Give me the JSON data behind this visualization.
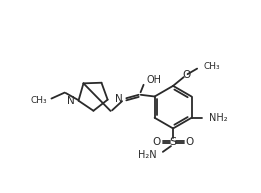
{
  "bg_color": "#ffffff",
  "line_color": "#2a2a2a",
  "line_width": 1.3,
  "font_size": 7.0,
  "figsize": [
    2.61,
    1.93
  ],
  "dpi": 100,
  "xlim": [
    -1,
    11
  ],
  "ylim": [
    -0.5,
    8.5
  ]
}
